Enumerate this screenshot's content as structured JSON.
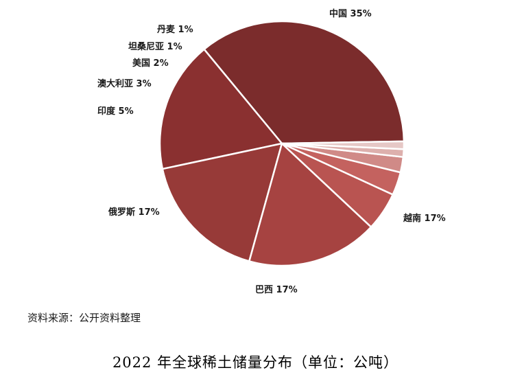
{
  "chart_data": {
    "type": "pie",
    "title": "",
    "categories": [
      "中国",
      "越南",
      "巴西",
      "俄罗斯",
      "印度",
      "澳大利亚",
      "美国",
      "坦桑尼亚",
      "丹麦"
    ],
    "values": [
      35,
      17,
      17,
      17,
      5,
      3,
      2,
      1,
      1
    ],
    "value_suffix": "%",
    "colors": [
      "#7b2c2c",
      "#8a3030",
      "#973a38",
      "#a64341",
      "#b95451",
      "#c4625f",
      "#d08a87",
      "#ddb0ad",
      "#e6c8c6"
    ],
    "legend": "none"
  },
  "source_text": "资料来源：公开资料整理",
  "caption": "2022 年全球稀土储量分布（单位：公吨）"
}
